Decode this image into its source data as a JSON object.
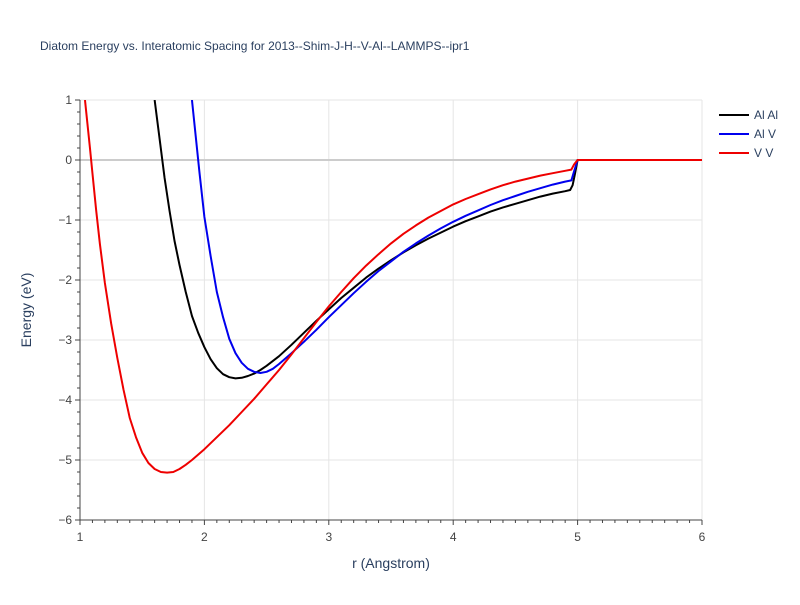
{
  "chart_data": {
    "type": "line",
    "title": "Diatom Energy vs. Interatomic Spacing for 2013--Shim-J-H--V-Al--LAMMPS--ipr1",
    "xlabel": "r (Angstrom)",
    "ylabel": "Energy (eV)",
    "xlim": [
      1,
      6
    ],
    "ylim": [
      -6,
      1
    ],
    "xticks": [
      1,
      2,
      3,
      4,
      5,
      6
    ],
    "yticks": [
      1,
      0,
      -1,
      -2,
      -3,
      -4,
      -5,
      -6
    ],
    "xtick_labels": [
      "1",
      "2",
      "3",
      "4",
      "5",
      "6"
    ],
    "ytick_labels": [
      "1",
      "0",
      "−1",
      "−2",
      "−3",
      "−4",
      "−5",
      "−6"
    ],
    "grid": true,
    "legend_position": "top-right",
    "series": [
      {
        "name": "Al Al",
        "color": "#000000",
        "x": [
          1.6,
          1.64,
          1.68,
          1.72,
          1.76,
          1.8,
          1.85,
          1.9,
          1.95,
          2.0,
          2.05,
          2.1,
          2.15,
          2.2,
          2.25,
          2.3,
          2.35,
          2.4,
          2.45,
          2.5,
          2.6,
          2.7,
          2.8,
          2.9,
          3.0,
          3.1,
          3.2,
          3.3,
          3.4,
          3.5,
          3.6,
          3.7,
          3.8,
          3.9,
          4.0,
          4.1,
          4.2,
          4.3,
          4.4,
          4.5,
          4.6,
          4.7,
          4.8,
          4.9,
          4.94,
          4.96,
          4.98,
          5.0,
          5.5,
          6.0
        ],
        "y": [
          1.0,
          0.35,
          -0.3,
          -0.85,
          -1.35,
          -1.75,
          -2.2,
          -2.6,
          -2.88,
          -3.12,
          -3.32,
          -3.47,
          -3.57,
          -3.62,
          -3.64,
          -3.63,
          -3.6,
          -3.56,
          -3.5,
          -3.43,
          -3.27,
          -3.08,
          -2.88,
          -2.68,
          -2.49,
          -2.3,
          -2.13,
          -1.96,
          -1.81,
          -1.67,
          -1.54,
          -1.42,
          -1.31,
          -1.21,
          -1.11,
          -1.02,
          -0.94,
          -0.86,
          -0.79,
          -0.73,
          -0.67,
          -0.61,
          -0.56,
          -0.52,
          -0.5,
          -0.42,
          -0.22,
          0.0,
          0.0,
          0.0
        ]
      },
      {
        "name": "Al V",
        "color": "#0000ee",
        "x": [
          1.9,
          1.93,
          1.96,
          2.0,
          2.05,
          2.1,
          2.15,
          2.2,
          2.25,
          2.3,
          2.35,
          2.4,
          2.45,
          2.5,
          2.55,
          2.6,
          2.7,
          2.8,
          2.9,
          3.0,
          3.1,
          3.2,
          3.3,
          3.4,
          3.5,
          3.6,
          3.7,
          3.8,
          3.9,
          4.0,
          4.1,
          4.2,
          4.3,
          4.4,
          4.5,
          4.6,
          4.7,
          4.8,
          4.9,
          4.95,
          4.97,
          5.0,
          5.5,
          6.0
        ],
        "y": [
          1.0,
          0.4,
          -0.2,
          -0.95,
          -1.6,
          -2.2,
          -2.62,
          -2.98,
          -3.22,
          -3.38,
          -3.48,
          -3.53,
          -3.55,
          -3.53,
          -3.48,
          -3.4,
          -3.22,
          -3.03,
          -2.83,
          -2.62,
          -2.42,
          -2.22,
          -2.03,
          -1.85,
          -1.69,
          -1.53,
          -1.39,
          -1.26,
          -1.14,
          -1.03,
          -0.93,
          -0.84,
          -0.75,
          -0.67,
          -0.6,
          -0.53,
          -0.47,
          -0.41,
          -0.36,
          -0.34,
          -0.2,
          0.0,
          0.0,
          0.0
        ]
      },
      {
        "name": "V V",
        "color": "#ee0000",
        "x": [
          1.04,
          1.06,
          1.08,
          1.1,
          1.13,
          1.16,
          1.2,
          1.25,
          1.3,
          1.35,
          1.4,
          1.45,
          1.5,
          1.55,
          1.6,
          1.65,
          1.7,
          1.75,
          1.8,
          1.85,
          1.9,
          2.0,
          2.1,
          2.2,
          2.3,
          2.4,
          2.5,
          2.6,
          2.7,
          2.8,
          2.9,
          3.0,
          3.1,
          3.2,
          3.3,
          3.4,
          3.5,
          3.6,
          3.7,
          3.8,
          3.9,
          4.0,
          4.1,
          4.2,
          4.3,
          4.4,
          4.5,
          4.6,
          4.7,
          4.8,
          4.9,
          4.95,
          4.97,
          5.0,
          5.5,
          6.0
        ],
        "y": [
          1.0,
          0.6,
          0.2,
          -0.22,
          -0.84,
          -1.4,
          -2.05,
          -2.72,
          -3.3,
          -3.83,
          -4.3,
          -4.62,
          -4.88,
          -5.05,
          -5.15,
          -5.2,
          -5.21,
          -5.2,
          -5.15,
          -5.08,
          -5.0,
          -4.82,
          -4.62,
          -4.42,
          -4.2,
          -3.98,
          -3.74,
          -3.5,
          -3.24,
          -2.97,
          -2.7,
          -2.44,
          -2.2,
          -1.97,
          -1.76,
          -1.57,
          -1.39,
          -1.23,
          -1.09,
          -0.96,
          -0.85,
          -0.74,
          -0.65,
          -0.57,
          -0.49,
          -0.42,
          -0.36,
          -0.31,
          -0.26,
          -0.22,
          -0.18,
          -0.16,
          -0.08,
          0.0,
          0.0,
          0.0
        ]
      }
    ]
  }
}
